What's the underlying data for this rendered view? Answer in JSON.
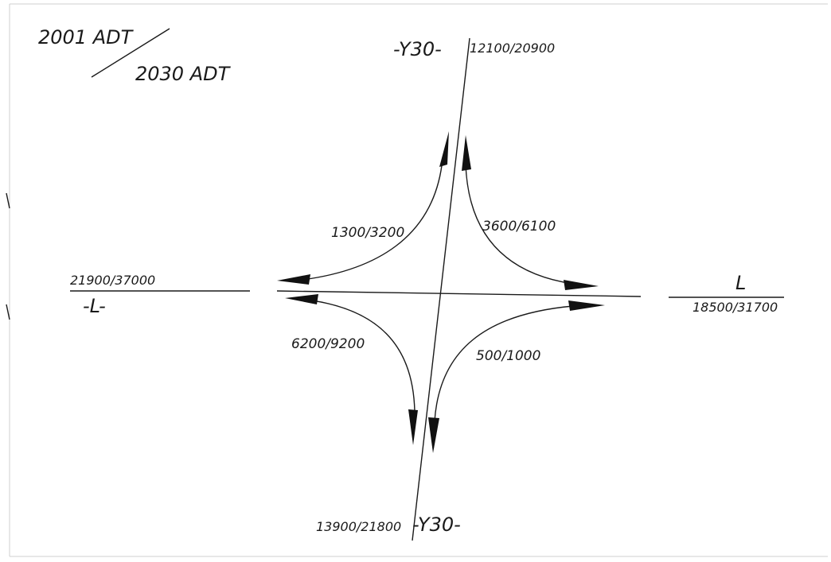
{
  "legend": {
    "top": "2001 ADT",
    "bottom": "2030 ADT"
  },
  "roads": {
    "y30_north_name": "-Y30-",
    "y30_north_volume": "12100/20900",
    "y30_south_name": "-Y30-",
    "y30_south_volume": "13900/21800",
    "l_west_name": "-L-",
    "l_west_volume": "21900/37000",
    "l_east_name": "L",
    "l_east_volume": "18500/31700"
  },
  "movements": {
    "nw": "1300/3200",
    "ne": "3600/6100",
    "sw": "6200/9200",
    "se": "500/1000"
  },
  "colors": {
    "ink": "#1a1a1a",
    "background": "#ffffff"
  }
}
